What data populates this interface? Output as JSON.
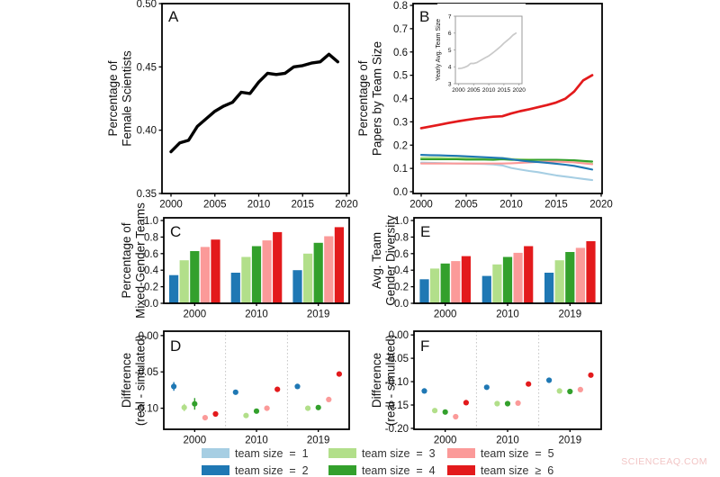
{
  "colors": {
    "black": "#000000",
    "gray": "#c9c9c9",
    "team1": "#a6cee3",
    "team2": "#1f78b4",
    "team3": "#b2df8a",
    "team4": "#33a02c",
    "team5": "#fb9a99",
    "team6": "#e31a1c"
  },
  "chart_data": [
    {
      "id": "A",
      "type": "line",
      "panel_label": "A",
      "ylabel": "Percentage of\nFemale Scientists",
      "x": [
        2000,
        2001,
        2002,
        2003,
        2004,
        2005,
        2006,
        2007,
        2008,
        2009,
        2010,
        2011,
        2012,
        2013,
        2014,
        2015,
        2016,
        2017,
        2018,
        2019
      ],
      "series": [
        {
          "name": "pct_female_scientists",
          "color": "black",
          "values": [
            0.383,
            0.39,
            0.392,
            0.403,
            0.409,
            0.415,
            0.419,
            0.422,
            0.43,
            0.429,
            0.438,
            0.445,
            0.444,
            0.445,
            0.45,
            0.451,
            0.453,
            0.454,
            0.46,
            0.454
          ]
        }
      ],
      "ylim": [
        0.35,
        0.5
      ],
      "yticks": [
        0.35,
        0.4,
        0.45,
        0.5
      ],
      "ytick_labels": [
        "0.35",
        "0.40",
        "0.45",
        "0.50"
      ],
      "xticks": [
        2000,
        2005,
        2010,
        2015,
        2020
      ],
      "xtick_labels": [
        "2000",
        "2005",
        "2010",
        "2015",
        "2020"
      ]
    },
    {
      "id": "B",
      "type": "line",
      "panel_label": "B",
      "ylabel": "Percentage of\nPapers by Team Size",
      "x": [
        2000,
        2001,
        2002,
        2003,
        2004,
        2005,
        2006,
        2007,
        2008,
        2009,
        2010,
        2011,
        2012,
        2013,
        2014,
        2015,
        2016,
        2017,
        2018,
        2019
      ],
      "series": [
        {
          "name": "team_size_1",
          "color": "team1",
          "values": [
            0.125,
            0.124,
            0.123,
            0.122,
            0.121,
            0.121,
            0.12,
            0.119,
            0.117,
            0.113,
            0.102,
            0.095,
            0.089,
            0.084,
            0.077,
            0.07,
            0.065,
            0.06,
            0.055,
            0.05
          ]
        },
        {
          "name": "team_size_3",
          "color": "team3",
          "values": [
            0.146,
            0.146,
            0.146,
            0.145,
            0.145,
            0.145,
            0.144,
            0.144,
            0.143,
            0.145,
            0.141,
            0.139,
            0.138,
            0.137,
            0.136,
            0.134,
            0.132,
            0.129,
            0.125,
            0.121
          ]
        },
        {
          "name": "team_size_4",
          "color": "team4",
          "values": [
            0.139,
            0.139,
            0.139,
            0.139,
            0.139,
            0.138,
            0.138,
            0.138,
            0.137,
            0.139,
            0.137,
            0.136,
            0.136,
            0.137,
            0.137,
            0.137,
            0.136,
            0.135,
            0.132,
            0.13
          ]
        },
        {
          "name": "team_size_5",
          "color": "team5",
          "values": [
            0.121,
            0.121,
            0.121,
            0.121,
            0.121,
            0.121,
            0.121,
            0.121,
            0.121,
            0.121,
            0.122,
            0.124,
            0.126,
            0.128,
            0.129,
            0.129,
            0.128,
            0.126,
            0.122,
            0.118
          ]
        },
        {
          "name": "team_size_2",
          "color": "team2",
          "values": [
            0.158,
            0.157,
            0.156,
            0.155,
            0.154,
            0.152,
            0.15,
            0.148,
            0.146,
            0.144,
            0.139,
            0.134,
            0.13,
            0.127,
            0.124,
            0.12,
            0.116,
            0.111,
            0.103,
            0.095
          ]
        },
        {
          "name": "team_size_ge6",
          "color": "team6",
          "values": [
            0.273,
            0.28,
            0.287,
            0.295,
            0.302,
            0.308,
            0.314,
            0.318,
            0.322,
            0.324,
            0.336,
            0.346,
            0.354,
            0.363,
            0.372,
            0.383,
            0.399,
            0.43,
            0.478,
            0.5
          ]
        }
      ],
      "ylim": [
        0.0,
        0.8
      ],
      "yticks": [
        0.0,
        0.1,
        0.2,
        0.3,
        0.4,
        0.5,
        0.6,
        0.7,
        0.8
      ],
      "ytick_labels": [
        "0.0",
        "0.1",
        "0.2",
        "0.3",
        "0.4",
        "0.5",
        "0.6",
        "0.7",
        "0.8"
      ],
      "xticks": [
        2000,
        2005,
        2010,
        2015,
        2020
      ],
      "xtick_labels": [
        "2000",
        "2005",
        "2010",
        "2015",
        "2020"
      ]
    },
    {
      "id": "B_inset",
      "type": "line",
      "panel_label": "",
      "ylabel": "Yearly Avg. Team Size",
      "x": [
        2000,
        2001,
        2002,
        2003,
        2004,
        2005,
        2006,
        2007,
        2008,
        2009,
        2010,
        2011,
        2012,
        2013,
        2014,
        2015,
        2016,
        2017,
        2018,
        2019
      ],
      "series": [
        {
          "name": "yearly_avg_team_size",
          "color": "gray",
          "values": [
            3.9,
            3.92,
            3.97,
            4.05,
            4.2,
            4.2,
            4.25,
            4.35,
            4.45,
            4.55,
            4.65,
            4.78,
            4.92,
            5.07,
            5.22,
            5.4,
            5.55,
            5.7,
            5.88,
            6.0
          ]
        }
      ],
      "ylim": [
        3,
        7
      ],
      "yticks": [
        3,
        4,
        5,
        6,
        7
      ],
      "ytick_labels": [
        "3",
        "4",
        "5",
        "6",
        "7"
      ],
      "xticks": [
        2000,
        2005,
        2010,
        2015,
        2020
      ],
      "xtick_labels": [
        "2000",
        "2005",
        "2010",
        "2015",
        "2020"
      ]
    },
    {
      "id": "C",
      "type": "bar",
      "panel_label": "C",
      "ylabel": "Percentage of\nMixed-Gender Teams",
      "categories": [
        "2000",
        "2010",
        "2019"
      ],
      "series": [
        {
          "name": "team_size_2",
          "color": "team2",
          "values": [
            0.34,
            0.37,
            0.4
          ]
        },
        {
          "name": "team_size_3",
          "color": "team3",
          "values": [
            0.52,
            0.56,
            0.6
          ]
        },
        {
          "name": "team_size_4",
          "color": "team4",
          "values": [
            0.63,
            0.69,
            0.73
          ]
        },
        {
          "name": "team_size_5",
          "color": "team5",
          "values": [
            0.68,
            0.76,
            0.81
          ]
        },
        {
          "name": "team_size_ge6",
          "color": "team6",
          "values": [
            0.77,
            0.86,
            0.92
          ]
        }
      ],
      "ylim": [
        0.0,
        1.0
      ],
      "yticks": [
        0.0,
        0.2,
        0.4,
        0.6,
        0.8,
        1.0
      ],
      "ytick_labels": [
        "0.0",
        "0.2",
        "0.4",
        "0.6",
        "0.8",
        "1.0"
      ]
    },
    {
      "id": "E",
      "type": "bar",
      "panel_label": "E",
      "ylabel": "Avg. Team\nGender Diversity",
      "categories": [
        "2000",
        "2010",
        "2019"
      ],
      "series": [
        {
          "name": "team_size_2",
          "color": "team2",
          "values": [
            0.29,
            0.33,
            0.37
          ]
        },
        {
          "name": "team_size_3",
          "color": "team3",
          "values": [
            0.42,
            0.47,
            0.52
          ]
        },
        {
          "name": "team_size_4",
          "color": "team4",
          "values": [
            0.48,
            0.56,
            0.62
          ]
        },
        {
          "name": "team_size_5",
          "color": "team5",
          "values": [
            0.51,
            0.61,
            0.67
          ]
        },
        {
          "name": "team_size_ge6",
          "color": "team6",
          "values": [
            0.57,
            0.69,
            0.75
          ]
        }
      ],
      "ylim": [
        0.0,
        1.0
      ],
      "yticks": [
        0.0,
        0.2,
        0.4,
        0.6,
        0.8,
        1.0
      ],
      "ytick_labels": [
        "0.0",
        "0.2",
        "0.4",
        "0.6",
        "0.8",
        "1.0"
      ]
    },
    {
      "id": "D",
      "type": "scatter",
      "panel_label": "D",
      "ylabel": "Difference\n(real - simulated)",
      "categories": [
        "2000",
        "2010",
        "2019"
      ],
      "series": [
        {
          "name": "team_size_2",
          "color": "team2",
          "values": [
            -0.07,
            -0.078,
            -0.07
          ],
          "err": [
            0.006,
            0.003,
            0.003
          ]
        },
        {
          "name": "team_size_3",
          "color": "team3",
          "values": [
            -0.099,
            -0.11,
            -0.1
          ],
          "err": [
            0.005,
            0.002,
            0.002
          ]
        },
        {
          "name": "team_size_4",
          "color": "team4",
          "values": [
            -0.094,
            -0.104,
            -0.099
          ],
          "err": [
            0.008,
            0.003,
            0.003
          ]
        },
        {
          "name": "team_size_5",
          "color": "team5",
          "values": [
            -0.113,
            -0.1,
            -0.088
          ],
          "err": [
            0.003,
            0.002,
            0.002
          ]
        },
        {
          "name": "team_size_ge6",
          "color": "team6",
          "values": [
            -0.108,
            -0.074,
            -0.053
          ],
          "err": [
            0.003,
            0.002,
            0.002
          ]
        }
      ],
      "ylim": [
        -0.129,
        0.006
      ],
      "yticks": [
        0.0,
        -0.05,
        -0.1
      ],
      "ytick_labels": [
        "0.00",
        "-0.05",
        "-0.10"
      ]
    },
    {
      "id": "F",
      "type": "scatter",
      "panel_label": "F",
      "ylabel": "Difference\n(real - simulated)",
      "categories": [
        "2000",
        "2010",
        "2019"
      ],
      "series": [
        {
          "name": "team_size_2",
          "color": "team2",
          "values": [
            -0.12,
            -0.112,
            -0.097
          ],
          "err": [
            0.002,
            0.002,
            0.002
          ]
        },
        {
          "name": "team_size_3",
          "color": "team3",
          "values": [
            -0.162,
            -0.147,
            -0.12
          ],
          "err": [
            0.002,
            0.002,
            0.002
          ]
        },
        {
          "name": "team_size_4",
          "color": "team4",
          "values": [
            -0.165,
            -0.147,
            -0.121
          ],
          "err": [
            0.002,
            0.002,
            0.002
          ]
        },
        {
          "name": "team_size_5",
          "color": "team5",
          "values": [
            -0.175,
            -0.146,
            -0.117
          ],
          "err": [
            0.002,
            0.002,
            0.002
          ]
        },
        {
          "name": "team_size_ge6",
          "color": "team6",
          "values": [
            -0.145,
            -0.105,
            -0.086
          ],
          "err": [
            0.002,
            0.002,
            0.002
          ]
        }
      ],
      "ylim": [
        -0.202,
        0.008
      ],
      "yticks": [
        0.0,
        -0.05,
        -0.1,
        -0.15,
        -0.2
      ],
      "ytick_labels": [
        "0.00",
        "-0.05",
        "-0.10",
        "-0.15",
        "-0.20"
      ]
    }
  ],
  "legend": {
    "items": [
      {
        "key": "team1",
        "label": "team size  =  1"
      },
      {
        "key": "team2",
        "label": "team size  =  2"
      },
      {
        "key": "team3",
        "label": "team size  =  3"
      },
      {
        "key": "team4",
        "label": "team size  =  4"
      },
      {
        "key": "team5",
        "label": "team size  =  5"
      },
      {
        "key": "team6",
        "label": "team size  ≥  6"
      }
    ]
  },
  "watermark": {
    "text": "SCIENCEAQ.COM"
  }
}
